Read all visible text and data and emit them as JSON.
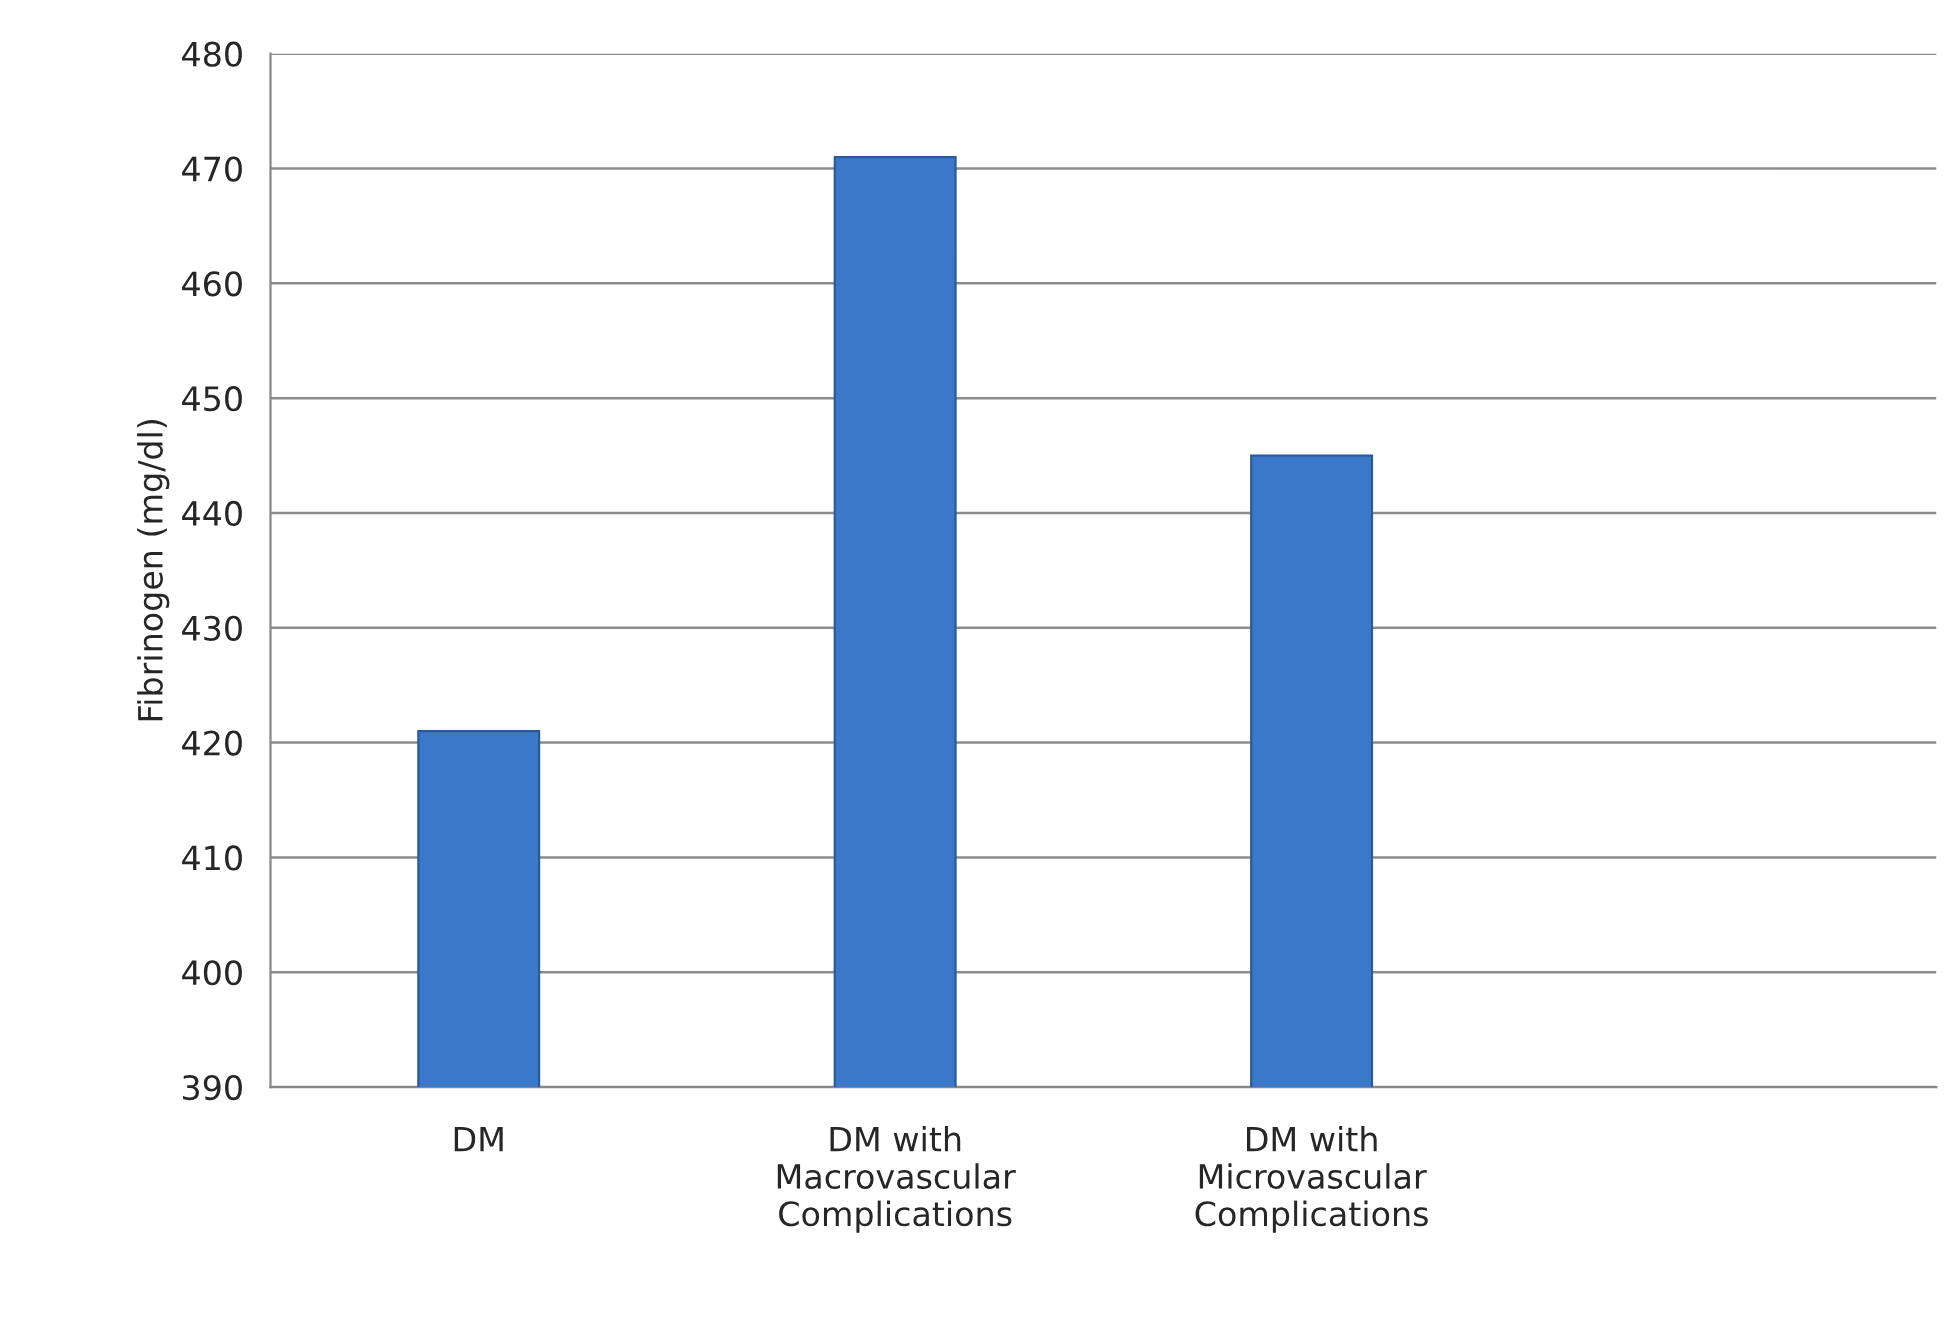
{
  "chart_data": {
    "type": "bar",
    "ylabel": "Fibrinogen (mg/dl)",
    "categories": [
      "DM",
      "DM with\nMacrovascular\nComplications",
      "DM with\nMicrovascular\nComplications",
      null
    ],
    "values": [
      421,
      471,
      445,
      null
    ],
    "color": "#3b78c9",
    "ylim": [
      390,
      480
    ],
    "yticks": [
      390,
      400,
      410,
      420,
      430,
      440,
      450,
      460,
      470,
      480
    ],
    "grid": "y",
    "legend": false
  }
}
